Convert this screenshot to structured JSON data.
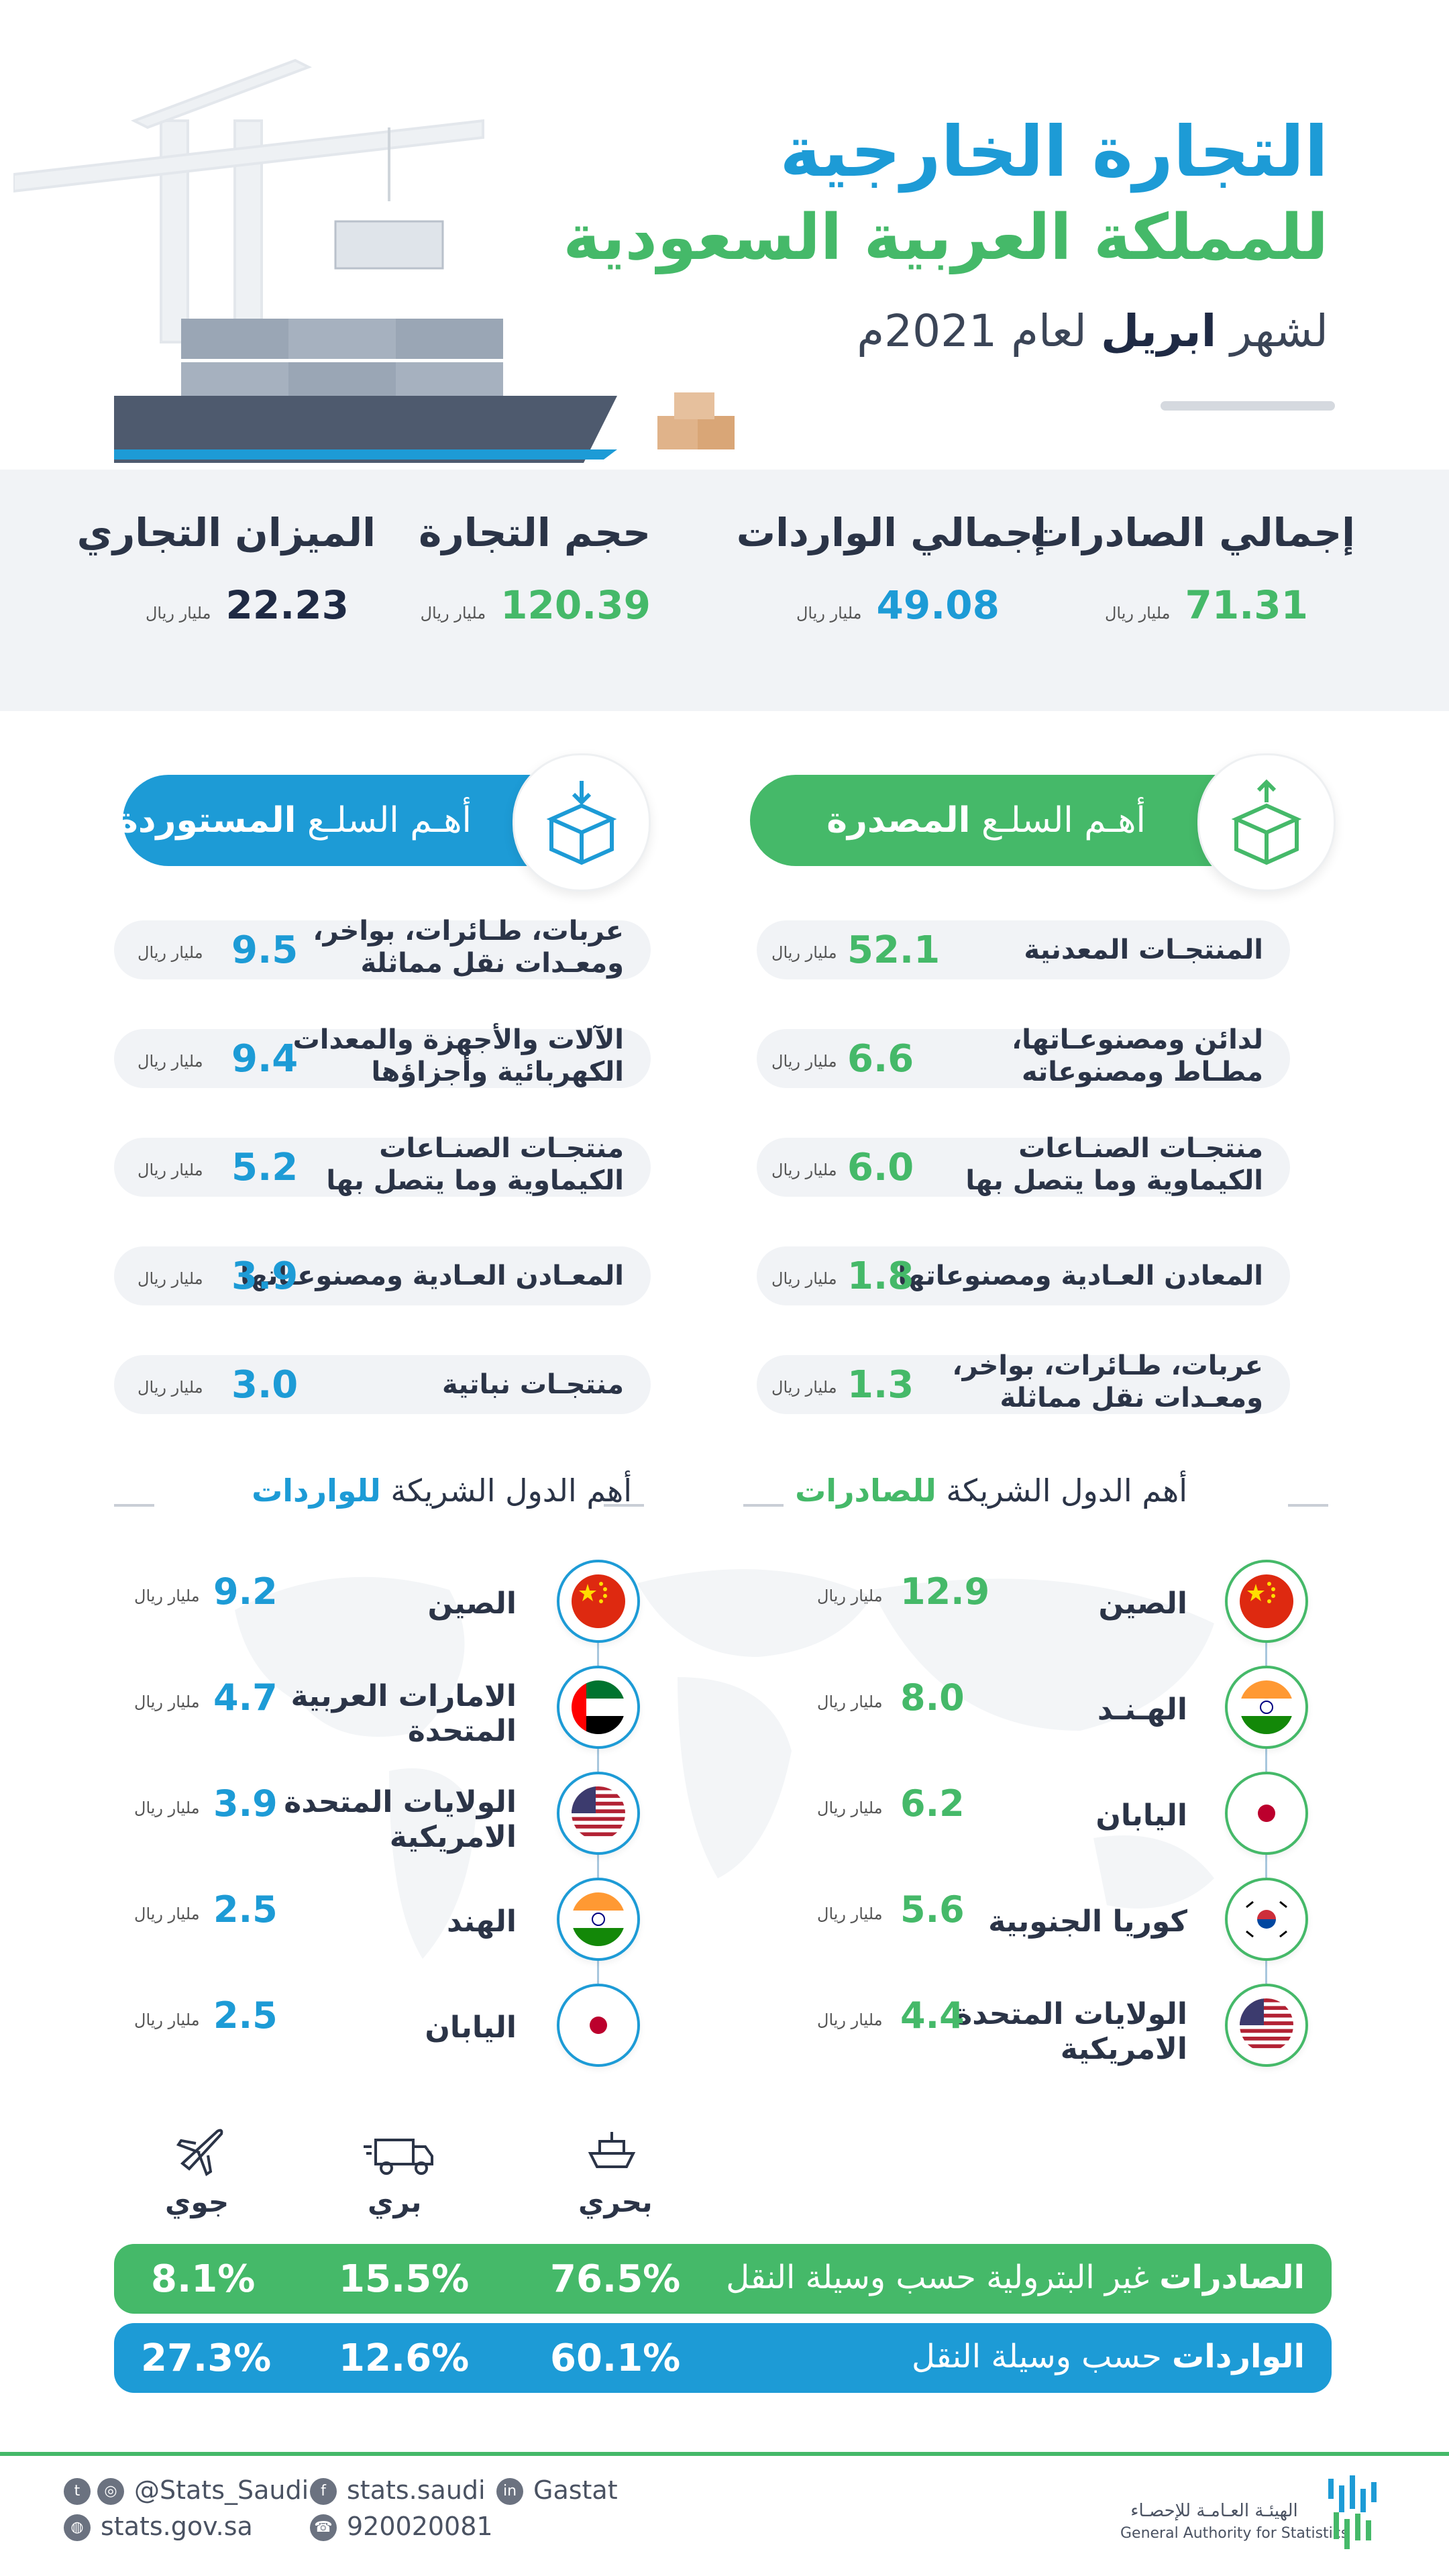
{
  "header": {
    "title_line1": "التجارة الخارجية",
    "title_line2": "للمملكة العربية السعودية",
    "subtitle_prefix": "لشهر ",
    "subtitle_month": "ابريل",
    "subtitle_suffix": " لعام 2021م"
  },
  "summary": [
    {
      "title": "إجمالي الصادرات",
      "value": "71.31",
      "unit": "مليار ريال",
      "color": "#45b969"
    },
    {
      "title": "إجمالي الواردات",
      "value": "49.08",
      "unit": "مليار ريال",
      "color": "#1d9bd6"
    },
    {
      "title": "حجم التجارة",
      "value": "120.39",
      "unit": "مليار ريال",
      "color": "#45b969"
    },
    {
      "title": "الميزان التجاري",
      "value": "22.23",
      "unit": "مليار ريال",
      "color": "#1f2a44"
    }
  ],
  "exports_section": {
    "title_prefix": "أهـم السلـع ",
    "title_bold": "المصدرة",
    "items": [
      {
        "label": "المنتجـات المعدنية",
        "value": "52.1",
        "unit": "مليار ريال"
      },
      {
        "label": "لدائن ومصنوعـاتها،\nمطـاط ومصنوعاته",
        "value": "6.6",
        "unit": "مليار ريال"
      },
      {
        "label": "منتجـات الصنـاعات\nالكيماوية وما يتصل بها",
        "value": "6.0",
        "unit": "مليار ريال"
      },
      {
        "label": "المعادن العـادية ومصنوعاتها",
        "value": "1.8",
        "unit": "مليار ريال"
      },
      {
        "label": "عربات، طـائرات، بواخر،\nومعـدات نقل مماثلة",
        "value": "1.3",
        "unit": "مليار ريال"
      }
    ]
  },
  "imports_section": {
    "title_prefix": "أهـم السلـع ",
    "title_bold": "المستوردة",
    "items": [
      {
        "label": "عربات، طـائرات، بواخر،\nومعـدات نقل مماثلة",
        "value": "9.5",
        "unit": "مليار ريال"
      },
      {
        "label": "الآلات والأجهزة والمعدات\nالكهربائية وأجزاؤها",
        "value": "9.4",
        "unit": "مليار ريال"
      },
      {
        "label": "منتجـات الصنـاعات\nالكيماوية وما يتصل بها",
        "value": "5.2",
        "unit": "مليار ريال"
      },
      {
        "label": "المعـادن العـادية ومصنوعـاتها",
        "value": "3.9",
        "unit": "مليار ريال"
      },
      {
        "label": "منتجـات نباتية",
        "value": "3.0",
        "unit": "مليار ريال"
      }
    ]
  },
  "export_partners": {
    "title_prefix": "أهم الدول الشريكة ",
    "title_bold": "للصادرات",
    "items": [
      {
        "country": "الصين",
        "value": "12.9",
        "unit": "مليار ريال",
        "flag": "china-flag-icon"
      },
      {
        "country": "الهـنـد",
        "value": "8.0",
        "unit": "مليار ريال",
        "flag": "india-flag-icon"
      },
      {
        "country": "اليابان",
        "value": "6.2",
        "unit": "مليار ريال",
        "flag": "japan-flag-icon"
      },
      {
        "country": "كوريا الجنوبية",
        "value": "5.6",
        "unit": "مليار ريال",
        "flag": "south-korea-flag-icon"
      },
      {
        "country": "الولايات المتحدة\nالامريكية",
        "value": "4.4",
        "unit": "مليار ريال",
        "flag": "usa-flag-icon"
      }
    ]
  },
  "import_partners": {
    "title_prefix": "أهم الدول الشريكة ",
    "title_bold": "للواردات",
    "items": [
      {
        "country": "الصين",
        "value": "9.2",
        "unit": "مليار ريال",
        "flag": "china-flag-icon"
      },
      {
        "country": "الامارات العربية\nالمتحدة",
        "value": "4.7",
        "unit": "مليار ريال",
        "flag": "uae-flag-icon"
      },
      {
        "country": "الولايات المتحدة\nالامريكية",
        "value": "3.9",
        "unit": "مليار ريال",
        "flag": "usa-flag-icon"
      },
      {
        "country": "الهند",
        "value": "2.5",
        "unit": "مليار ريال",
        "flag": "india-flag-icon"
      },
      {
        "country": "اليابان",
        "value": "2.5",
        "unit": "مليار ريال",
        "flag": "japan-flag-icon"
      }
    ]
  },
  "transport": {
    "modes": [
      {
        "label": "بحري",
        "icon": "ship-icon"
      },
      {
        "label": "بري",
        "icon": "truck-icon"
      },
      {
        "label": "جوي",
        "icon": "plane-icon"
      }
    ],
    "exports_row": {
      "label_bold": "الصادرات",
      "label_rest": " غير البترولية حسب وسيلة النقل",
      "values": [
        "76.5%",
        "15.5%",
        "8.1%"
      ],
      "color": "#45b969"
    },
    "imports_row": {
      "label_bold": "الواردات",
      "label_rest": " حسب وسيلة النقل",
      "values": [
        "60.1%",
        "12.6%",
        "27.3%"
      ],
      "color": "#1d9bd6"
    }
  },
  "footer": {
    "twitter": "@Stats_Saudi",
    "facebook": "stats.saudi",
    "linkedin": "Gastat",
    "website": "stats.gov.sa",
    "phone": "920020081",
    "org_ar": "الهيئـة العـامـة للإحصـاء",
    "org_en": "General Authority for Statistics"
  }
}
